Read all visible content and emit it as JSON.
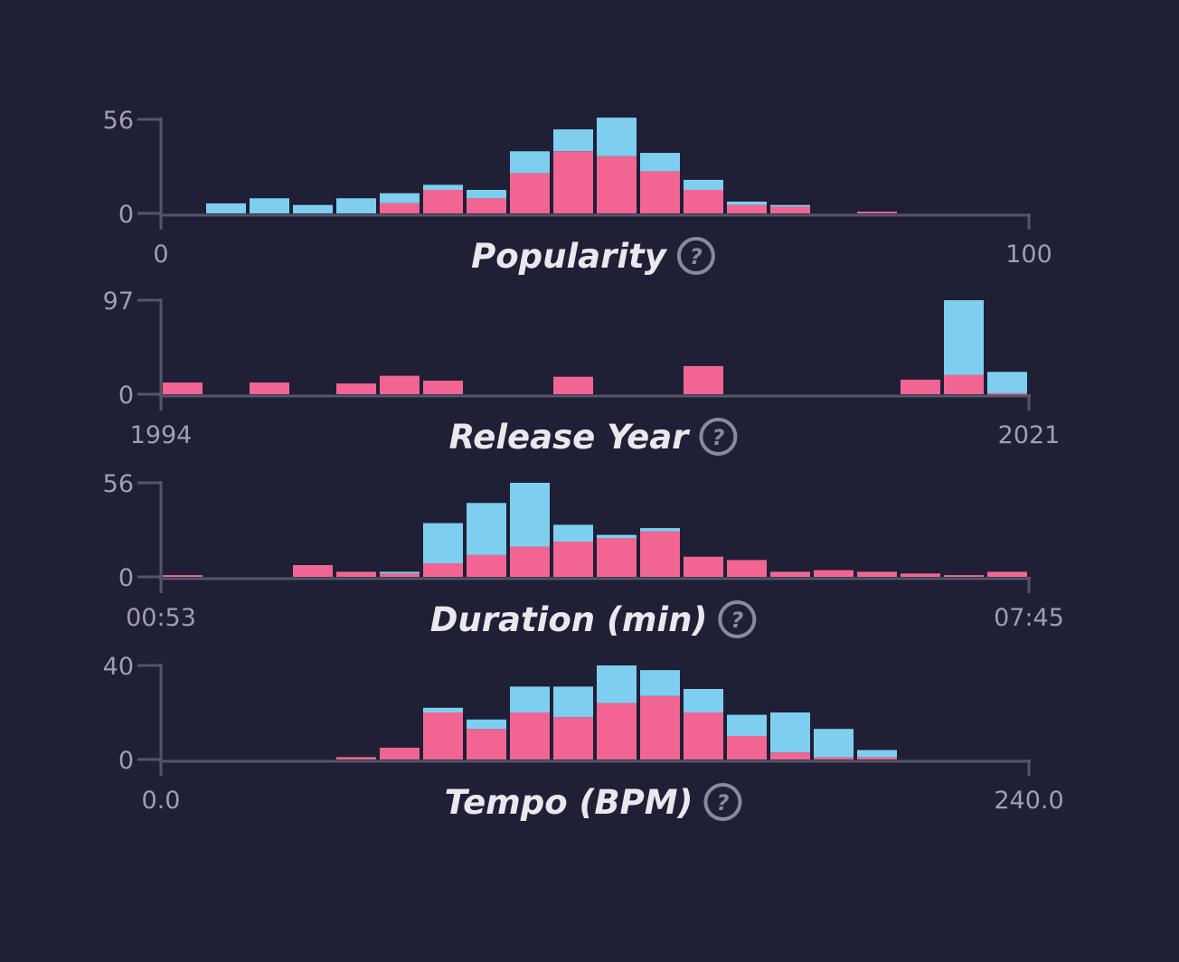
{
  "colors": {
    "background": "#1f1f36",
    "series_a": "#f26593",
    "series_b": "#7ecfef",
    "axis": "#55556a",
    "tick_text": "#9f9fae",
    "title_text": "#e8e8ee",
    "help_icon": "#8a8a9c"
  },
  "help_symbol": "?",
  "chart_data": [
    {
      "type": "bar",
      "stacked": true,
      "xlabel": "Popularity",
      "x_tick_labels": [
        "0",
        "100"
      ],
      "y_tick_labels": [
        "0",
        "56"
      ],
      "ylim": [
        0,
        56
      ],
      "bins": 20,
      "series": [
        {
          "values": [
            0,
            0,
            0,
            0,
            0,
            6,
            14,
            9,
            24,
            37,
            34,
            25,
            14,
            5,
            4,
            0,
            1,
            0,
            0,
            0
          ]
        },
        {
          "values": [
            0,
            6,
            9,
            5,
            9,
            6,
            3,
            5,
            13,
            13,
            23,
            11,
            6,
            2,
            1,
            0,
            0,
            0,
            0,
            0
          ]
        }
      ]
    },
    {
      "type": "bar",
      "stacked": true,
      "xlabel": "Release Year",
      "x_tick_labels": [
        "1994",
        "2021"
      ],
      "y_tick_labels": [
        "0",
        "97"
      ],
      "ylim": [
        0,
        97
      ],
      "bins": 20,
      "series": [
        {
          "values": [
            12,
            0,
            12,
            0,
            11,
            19,
            14,
            0,
            0,
            18,
            0,
            0,
            29,
            0,
            0,
            0,
            0,
            15,
            20,
            1
          ]
        },
        {
          "values": [
            0,
            0,
            0,
            0,
            0,
            0,
            0,
            0,
            0,
            0,
            0,
            0,
            0,
            0,
            0,
            0,
            0,
            0,
            77,
            22
          ]
        }
      ]
    },
    {
      "type": "bar",
      "stacked": true,
      "xlabel": "Duration (min)",
      "x_tick_labels": [
        "00:53",
        "07:45"
      ],
      "y_tick_labels": [
        "0",
        "56"
      ],
      "ylim": [
        0,
        56
      ],
      "bins": 20,
      "series": [
        {
          "values": [
            1,
            0,
            0,
            7,
            3,
            2,
            8,
            13,
            18,
            21,
            23,
            27,
            12,
            10,
            3,
            4,
            3,
            2,
            1,
            3
          ]
        },
        {
          "values": [
            0,
            0,
            0,
            0,
            0,
            1,
            24,
            31,
            38,
            10,
            2,
            2,
            0,
            0,
            0,
            0,
            0,
            0,
            0,
            0
          ]
        }
      ]
    },
    {
      "type": "bar",
      "stacked": true,
      "xlabel": "Tempo (BPM)",
      "x_tick_labels": [
        "0.0",
        "240.0"
      ],
      "y_tick_labels": [
        "0",
        "40"
      ],
      "ylim": [
        0,
        40
      ],
      "bins": 20,
      "series": [
        {
          "values": [
            0,
            0,
            0,
            0,
            1,
            5,
            20,
            13,
            20,
            18,
            24,
            27,
            20,
            10,
            3,
            1,
            1,
            0,
            0,
            0
          ]
        },
        {
          "values": [
            0,
            0,
            0,
            0,
            0,
            0,
            2,
            4,
            11,
            13,
            16,
            11,
            10,
            9,
            17,
            12,
            3,
            0,
            0,
            0
          ]
        }
      ]
    }
  ]
}
